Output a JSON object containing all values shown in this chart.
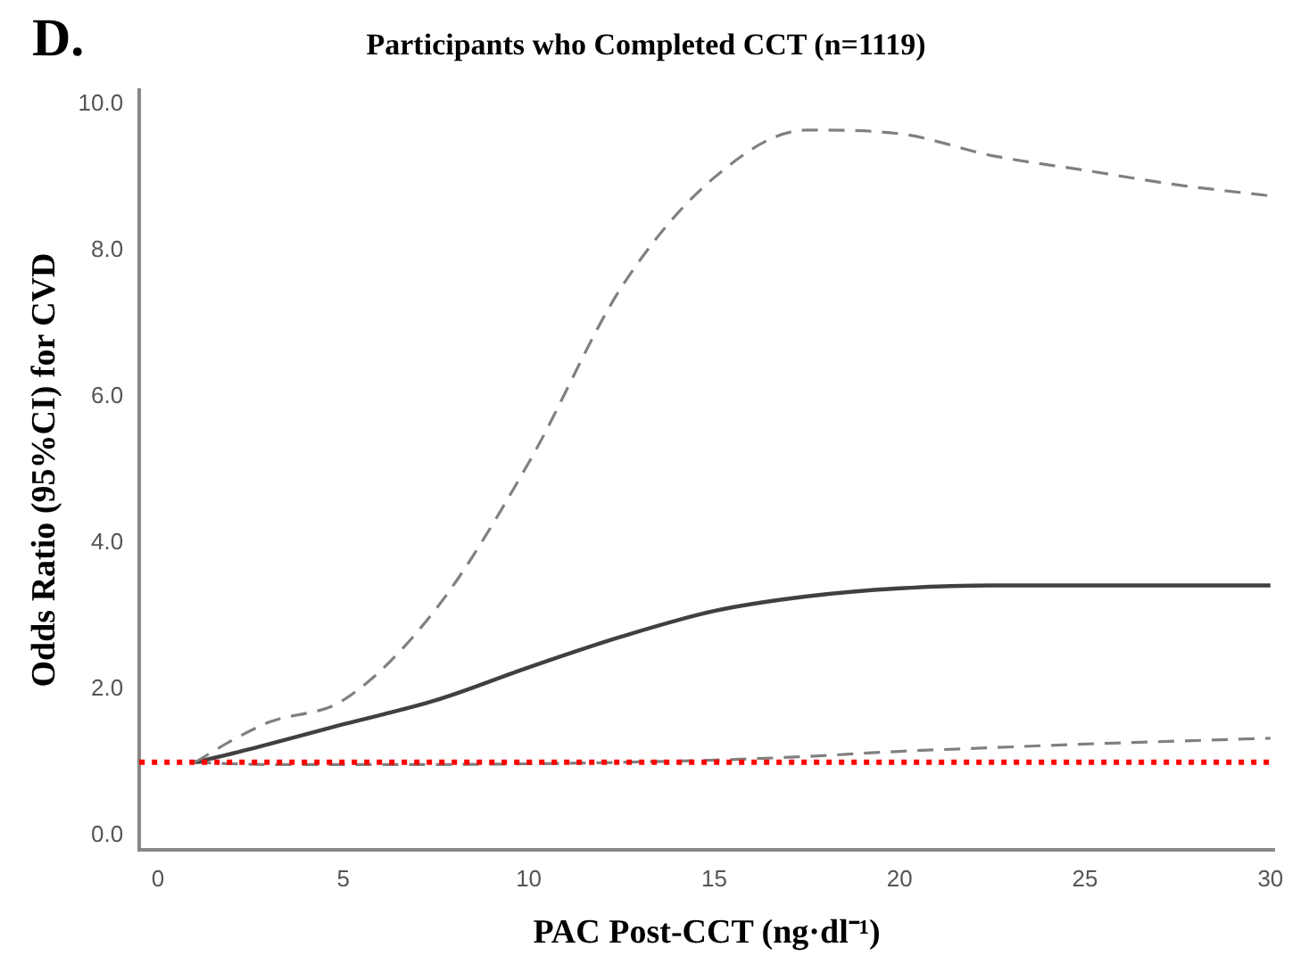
{
  "chart_data": {
    "type": "line",
    "title": "Participants who Completed CCT (n=1119)",
    "annotations": [
      "D."
    ],
    "xlabel": "PAC Post-CCT (ng·dl⁻¹)",
    "ylabel": "Odds Ratio (95%CI) for CVD",
    "x": [
      1,
      2,
      3,
      5,
      7.5,
      10,
      12.5,
      15,
      17.5,
      20,
      22.5,
      25,
      27.5,
      30
    ],
    "series": [
      {
        "color": "#808080",
        "line_style": "dashed",
        "values": [
          1.0,
          1.3,
          1.55,
          1.85,
          3.1,
          5.1,
          7.5,
          9.0,
          9.65,
          9.6,
          9.3,
          9.1,
          8.9,
          8.75
        ]
      },
      {
        "color": "#404040",
        "line_style": "solid",
        "values": [
          1.0,
          1.12,
          1.25,
          1.52,
          1.85,
          2.3,
          2.72,
          3.07,
          3.27,
          3.38,
          3.42,
          3.42,
          3.42,
          3.42
        ]
      },
      {
        "color": "#808080",
        "line_style": "dashed",
        "values": [
          1.0,
          0.98,
          0.97,
          0.97,
          0.97,
          0.98,
          1.0,
          1.03,
          1.08,
          1.15,
          1.2,
          1.25,
          1.29,
          1.33
        ]
      }
    ],
    "ref_lines": [
      {
        "axis": "y",
        "value": 1,
        "color": "#ff0000",
        "line_style": "dotted"
      }
    ],
    "xlim": [
      -0.5,
      30.1
    ],
    "xticks": [
      0,
      5,
      10,
      15,
      20,
      25,
      30
    ],
    "ylim": [
      -0.2,
      10.2
    ],
    "yticks": [
      {
        "value": 0,
        "label": "0.0"
      },
      {
        "value": 2,
        "label": "2.0"
      },
      {
        "value": 4,
        "label": "4.0"
      },
      {
        "value": 6,
        "label": "6.0"
      },
      {
        "value": 8,
        "label": "8.0"
      },
      {
        "value": 10,
        "label": "10.0"
      }
    ],
    "grid": false,
    "legend": false,
    "marker": "none"
  }
}
